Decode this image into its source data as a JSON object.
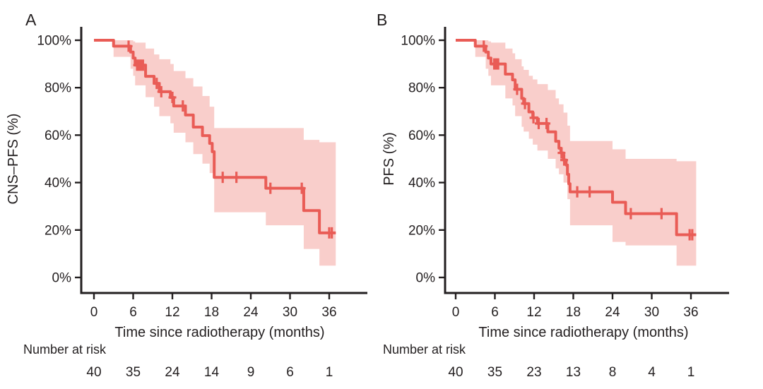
{
  "figure": {
    "background_color": "#ffffff",
    "text_color": "#231f20",
    "curve_color": "#e95c56",
    "band_color": "#f9cecb",
    "axis_color": "#231f20"
  },
  "chart_data": [
    {
      "type": "line",
      "subtype": "kaplan-meier-step-curve-with-confidence-band",
      "panel_label": "A",
      "ylabel": "CNS–PFS (%)",
      "xlabel": "Time since radiotherapy (months)",
      "ytick_labels": [
        "100%",
        "80%",
        "60%",
        "40%",
        "20%",
        "0%"
      ],
      "ytick_values": [
        100,
        80,
        60,
        40,
        20,
        0
      ],
      "xtick_values": [
        0,
        6,
        12,
        18,
        24,
        30,
        36
      ],
      "xlim": [
        0,
        42
      ],
      "ylim": [
        0,
        100
      ],
      "grid": false,
      "legend": "none",
      "survival_steps": [
        [
          0,
          100
        ],
        [
          3,
          97.5
        ],
        [
          5.6,
          95
        ],
        [
          6.0,
          92.5
        ],
        [
          6.3,
          89.5
        ],
        [
          7.9,
          84.8
        ],
        [
          9.2,
          81.8
        ],
        [
          10.0,
          78.3
        ],
        [
          11.7,
          75.9
        ],
        [
          12.2,
          72.3
        ],
        [
          14.0,
          68.5
        ],
        [
          15.2,
          63.4
        ],
        [
          16.6,
          59.8
        ],
        [
          17.7,
          56.5
        ],
        [
          18.1,
          53.0
        ],
        [
          18.4,
          42.2
        ],
        [
          26.3,
          37.6
        ],
        [
          32.1,
          28.2
        ],
        [
          34.5,
          18.8
        ]
      ],
      "end_time": 37.0,
      "censor_times": [
        5.3,
        6.6,
        6.9,
        7.2,
        7.5,
        9.6,
        10.3,
        12.0,
        13.6,
        19.7,
        21.8,
        27.0,
        31.8,
        36.0,
        36.4
      ],
      "confidence_band": [
        [
          3,
          100,
          93
        ],
        [
          5.6,
          100,
          88
        ],
        [
          6.0,
          99.5,
          85
        ],
        [
          6.3,
          99,
          81
        ],
        [
          7.9,
          96.5,
          76
        ],
        [
          9.2,
          94,
          72
        ],
        [
          10.0,
          92,
          68
        ],
        [
          11.7,
          90,
          65
        ],
        [
          12.2,
          87,
          61
        ],
        [
          14.0,
          84,
          57
        ],
        [
          15.2,
          80.5,
          52
        ],
        [
          16.6,
          76.5,
          48
        ],
        [
          17.7,
          72,
          44
        ],
        [
          18.4,
          63,
          27.5
        ],
        [
          26.3,
          63,
          22
        ],
        [
          32.1,
          58,
          12
        ],
        [
          34.5,
          57,
          5
        ]
      ],
      "risk_table": {
        "title": "Number at risk",
        "times": [
          0,
          6,
          12,
          18,
          24,
          30,
          36
        ],
        "values": [
          "40",
          "35",
          "24",
          "14",
          "9",
          "6",
          "1"
        ]
      }
    },
    {
      "type": "line",
      "subtype": "kaplan-meier-step-curve-with-confidence-band",
      "panel_label": "B",
      "ylabel": "PFS (%)",
      "xlabel": "Time since radiotherapy (months)",
      "ytick_labels": [
        "100%",
        "80%",
        "60%",
        "40%",
        "20%",
        "0%"
      ],
      "ytick_values": [
        100,
        80,
        60,
        40,
        20,
        0
      ],
      "xtick_values": [
        0,
        6,
        12,
        18,
        24,
        30,
        36
      ],
      "xlim": [
        0,
        42
      ],
      "ylim": [
        0,
        100
      ],
      "grid": false,
      "legend": "none",
      "survival_steps": [
        [
          0,
          100
        ],
        [
          3,
          97.5
        ],
        [
          4.6,
          95
        ],
        [
          5.0,
          92.5
        ],
        [
          5.4,
          90
        ],
        [
          7.6,
          85.7
        ],
        [
          8.7,
          83.3
        ],
        [
          9.1,
          79.3
        ],
        [
          10.1,
          75.5
        ],
        [
          10.4,
          73.3
        ],
        [
          11.2,
          69.8
        ],
        [
          11.8,
          67.3
        ],
        [
          12.5,
          64.9
        ],
        [
          14.1,
          61.4
        ],
        [
          15.3,
          57.4
        ],
        [
          15.8,
          54.5
        ],
        [
          16.1,
          52.5
        ],
        [
          16.5,
          49.5
        ],
        [
          16.9,
          47.4
        ],
        [
          17.1,
          43.5
        ],
        [
          17.3,
          39.5
        ],
        [
          17.5,
          36.1
        ],
        [
          24,
          31.7
        ],
        [
          26,
          26.9
        ],
        [
          33.8,
          18
        ]
      ],
      "end_time": 36.8,
      "censor_times": [
        4.3,
        5.9,
        6.2,
        6.5,
        9.4,
        10.6,
        11.9,
        12.7,
        13.9,
        16.2,
        16.6,
        18.6,
        20.5,
        26.8,
        31.5,
        35.8,
        36.2
      ],
      "confidence_band": [
        [
          3,
          100,
          93
        ],
        [
          4.6,
          100,
          88
        ],
        [
          5.0,
          99.5,
          85
        ],
        [
          5.4,
          99,
          81
        ],
        [
          7.6,
          96.5,
          75.5
        ],
        [
          8.7,
          94.5,
          72.5
        ],
        [
          9.1,
          92,
          68
        ],
        [
          10.1,
          89,
          63.5
        ],
        [
          10.4,
          87.5,
          61.5
        ],
        [
          11.2,
          85,
          58.5
        ],
        [
          11.8,
          83.5,
          56
        ],
        [
          12.5,
          81.5,
          53.5
        ],
        [
          14.1,
          79,
          50
        ],
        [
          15.3,
          75.5,
          46
        ],
        [
          15.8,
          73,
          43.5
        ],
        [
          16.5,
          69.5,
          40
        ],
        [
          17.1,
          64,
          33
        ],
        [
          17.5,
          57.5,
          22
        ],
        [
          24,
          54,
          15
        ],
        [
          26,
          50,
          13.5
        ],
        [
          33.8,
          49,
          5
        ]
      ],
      "risk_table": {
        "title": "Number at risk",
        "times": [
          0,
          6,
          12,
          18,
          24,
          30,
          36
        ],
        "values": [
          "40",
          "35",
          "23",
          "13",
          "8",
          "4",
          "1"
        ]
      }
    }
  ]
}
